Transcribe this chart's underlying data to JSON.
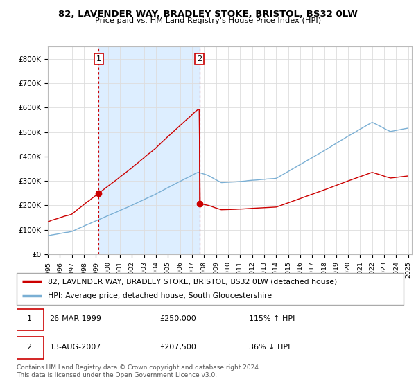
{
  "title": "82, LAVENDER WAY, BRADLEY STOKE, BRISTOL, BS32 0LW",
  "subtitle": "Price paid vs. HM Land Registry's House Price Index (HPI)",
  "sale1_date": 1999.23,
  "sale1_price": 250000,
  "sale2_date": 2007.62,
  "sale2_price": 207500,
  "sale1_pct": 115,
  "sale2_pct": 36,
  "sale1_label": "26-MAR-1999",
  "sale2_label": "13-AUG-2007",
  "red_line_color": "#cc0000",
  "blue_line_color": "#7aafd4",
  "shade_color": "#ddeeff",
  "marker_box_color": "#cc0000",
  "legend_label_red": "82, LAVENDER WAY, BRADLEY STOKE, BRISTOL, BS32 0LW (detached house)",
  "legend_label_blue": "HPI: Average price, detached house, South Gloucestershire",
  "footnote": "Contains HM Land Registry data © Crown copyright and database right 2024.\nThis data is licensed under the Open Government Licence v3.0.",
  "ylim": [
    0,
    850000
  ],
  "xlim": [
    1995.0,
    2025.3
  ],
  "background": "#ffffff",
  "grid_color": "#dddddd"
}
